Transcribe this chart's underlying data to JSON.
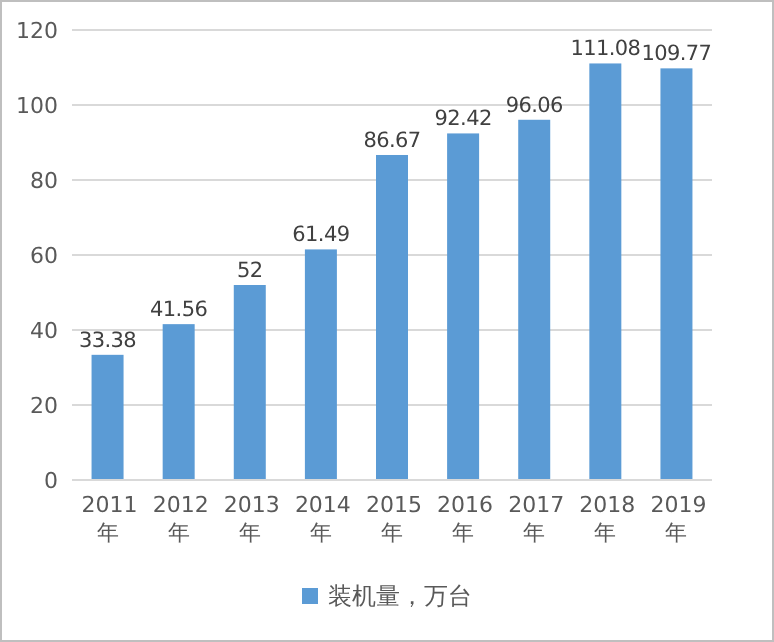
{
  "chart_data": {
    "type": "bar",
    "categories": [
      "2011年",
      "2012年",
      "2013年",
      "2014年",
      "2015年",
      "2016年",
      "2017年",
      "2018年",
      "2019年"
    ],
    "series": [
      {
        "name": "装机量，万台",
        "color": "#5b9bd5",
        "values": [
          33.38,
          41.56,
          52,
          61.49,
          86.67,
          92.42,
          96.06,
          111.08,
          109.77
        ]
      }
    ],
    "ylim": [
      0,
      120
    ],
    "yticks": [
      0,
      20,
      40,
      60,
      80,
      100,
      120
    ],
    "grid": "y",
    "data_labels": true,
    "legend": "bottom"
  }
}
